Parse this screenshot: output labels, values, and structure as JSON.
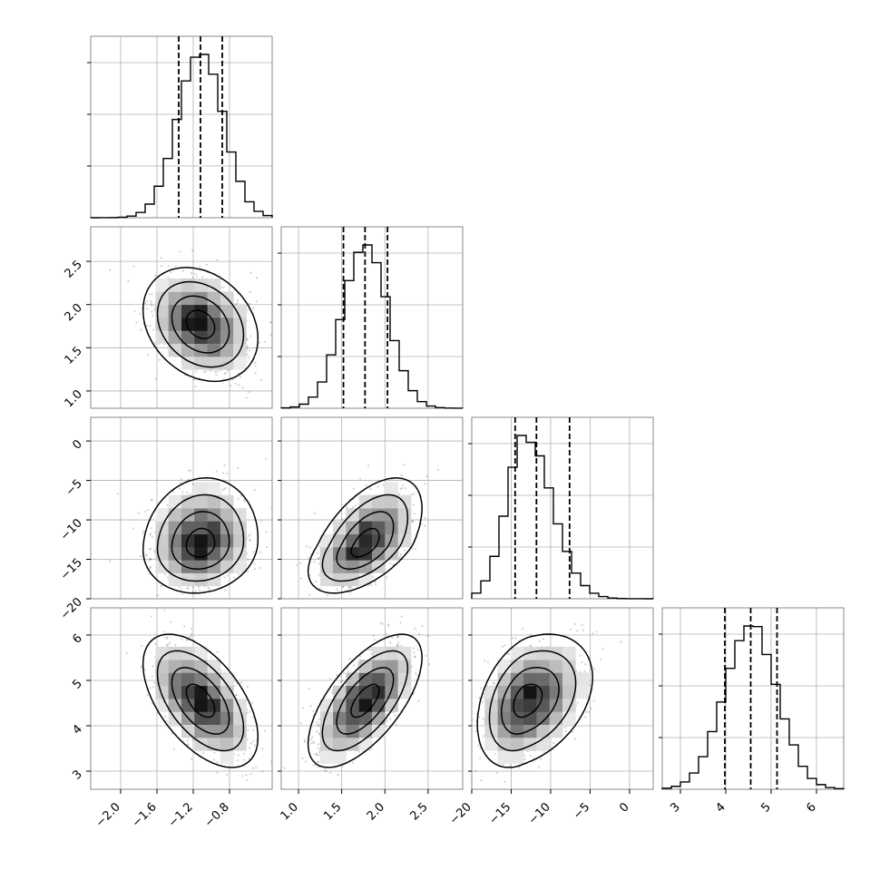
{
  "chart_data": {
    "type": "corner",
    "parameters": [
      {
        "index": 0,
        "range": [
          -2.33,
          -0.33
        ],
        "ticks": [
          -2.0,
          -1.6,
          -1.2,
          -0.8
        ],
        "tick_labels": [
          "−2.0",
          "−1.6",
          "−1.2",
          "−0.8"
        ],
        "center": -1.12,
        "sigma": 0.25,
        "skew": 0.0,
        "quantiles": [
          -1.36,
          -1.12,
          -0.88
        ]
      },
      {
        "index": 1,
        "range": [
          0.8,
          2.9
        ],
        "ticks": [
          1.0,
          1.5,
          2.0,
          2.5
        ],
        "tick_labels": [
          "1.0",
          "1.5",
          "2.0",
          "2.5"
        ],
        "center": 1.77,
        "sigma": 0.26,
        "skew": 0.0,
        "quantiles": [
          1.52,
          1.77,
          2.03
        ]
      },
      {
        "index": 2,
        "range": [
          -20,
          3
        ],
        "ticks": [
          -20,
          -15,
          -10,
          -5,
          0
        ],
        "tick_labels": [
          "−20",
          "−15",
          "−10",
          "−5",
          "0"
        ],
        "center": -13.2,
        "sigma": 2.4,
        "skew": 1.4,
        "quantiles": [
          -14.5,
          -11.8,
          -7.6
        ]
      },
      {
        "index": 3,
        "range": [
          2.6,
          6.6
        ],
        "ticks": [
          3,
          4,
          5,
          6
        ],
        "tick_labels": [
          "3",
          "4",
          "5",
          "6"
        ],
        "center": 4.55,
        "sigma": 0.58,
        "skew": 0.0,
        "quantiles": [
          3.98,
          4.55,
          5.13
        ]
      }
    ],
    "correlations": [
      {
        "pair": [
          0,
          1
        ],
        "rho": -0.25
      },
      {
        "pair": [
          0,
          2
        ],
        "rho": 0.1
      },
      {
        "pair": [
          1,
          2
        ],
        "rho": 0.55
      },
      {
        "pair": [
          0,
          3
        ],
        "rho": -0.55
      },
      {
        "pair": [
          1,
          3
        ],
        "rho": 0.65
      },
      {
        "pair": [
          2,
          3
        ],
        "rho": 0.35
      }
    ],
    "hist_bins": 20,
    "contour_levels": [
      0.5,
      1.0,
      1.5,
      2.0
    ],
    "colors": {
      "line": "#000000",
      "grid": "#b0b0b0",
      "frame": "#888888",
      "points": "#000000"
    },
    "grid": true,
    "title": "",
    "xlabel": "",
    "ylabel": ""
  }
}
